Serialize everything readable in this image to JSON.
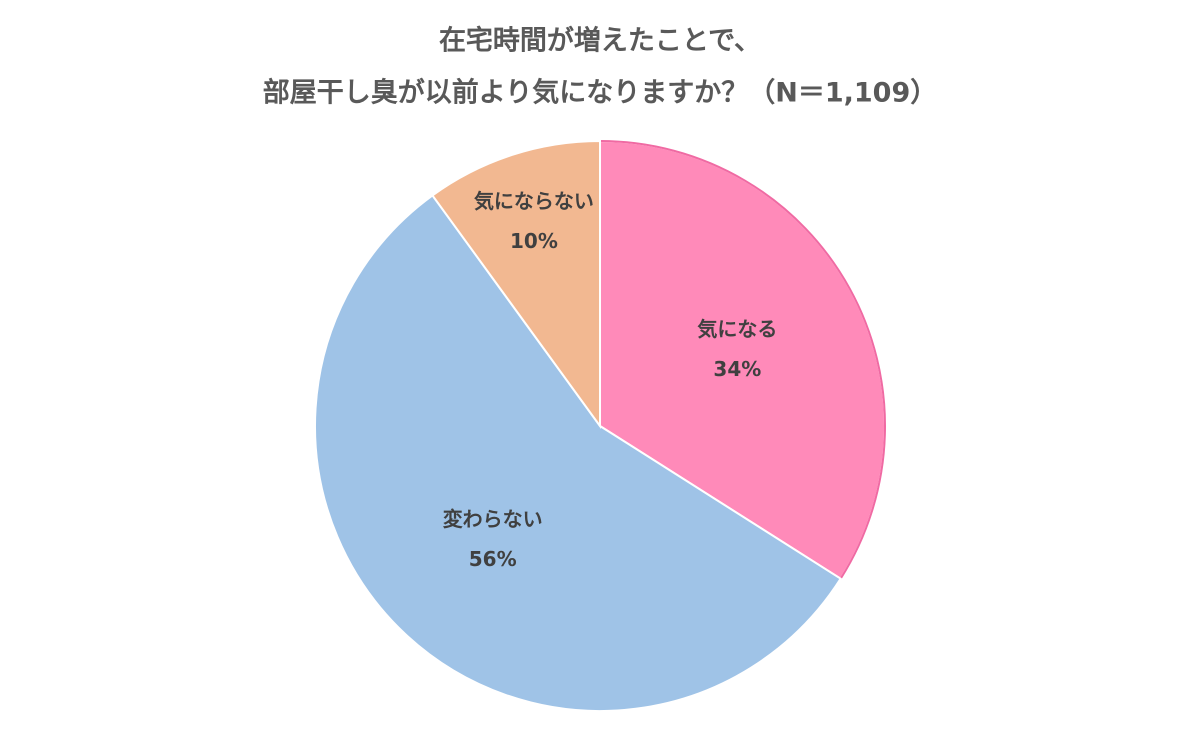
{
  "chart_data": {
    "type": "pie",
    "title": [
      "在宅時間が増えたことで、",
      "部屋干し臭が以前より気になりますか？（N＝1,109）"
    ],
    "categories": [
      "気になる",
      "変わらない",
      "気にならない"
    ],
    "values": [
      34,
      56,
      10
    ],
    "value_labels": [
      "34%",
      "56%",
      "10%"
    ],
    "colors": [
      "#FF8AB9",
      "#9FC3E7",
      "#F2B891"
    ]
  }
}
